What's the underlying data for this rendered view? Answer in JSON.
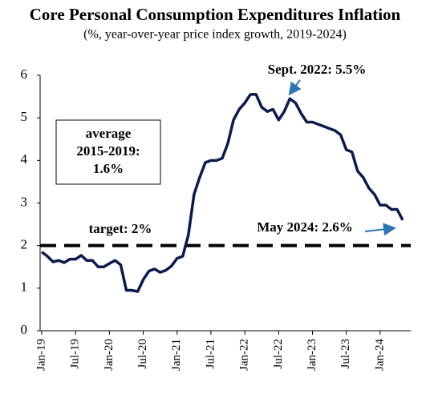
{
  "chart_data": {
    "type": "line",
    "title": "Core Personal Consumption Expenditures Inflation",
    "subtitle": "(%, year-over-year price index growth, 2019-2024)",
    "categories": [
      "Jan-19",
      null,
      null,
      null,
      null,
      null,
      "Jul-19",
      null,
      null,
      null,
      null,
      null,
      "Jan-20",
      null,
      null,
      null,
      null,
      null,
      "Jul-20",
      null,
      null,
      null,
      null,
      null,
      "Jan-21",
      null,
      null,
      null,
      null,
      null,
      "Jul-21",
      null,
      null,
      null,
      null,
      null,
      "Jan-22",
      null,
      null,
      null,
      null,
      null,
      "Jul-22",
      null,
      null,
      null,
      null,
      null,
      "Jan-23",
      null,
      null,
      null,
      null,
      null,
      "Jul-23",
      null,
      null,
      null,
      null,
      null,
      "Jan-24",
      null,
      null,
      null,
      null
    ],
    "series": [
      {
        "name": "Core PCE inflation",
        "color": "#0d1b4b",
        "values": [
          1.85,
          1.75,
          1.62,
          1.65,
          1.6,
          1.68,
          1.68,
          1.77,
          1.65,
          1.65,
          1.5,
          1.5,
          1.58,
          1.65,
          1.55,
          0.95,
          0.95,
          0.92,
          1.2,
          1.4,
          1.45,
          1.37,
          1.42,
          1.52,
          1.7,
          1.75,
          2.25,
          3.2,
          3.6,
          3.95,
          4.0,
          4.0,
          4.05,
          4.4,
          4.95,
          5.2,
          5.35,
          5.55,
          5.55,
          5.25,
          5.15,
          5.2,
          4.95,
          5.15,
          5.45,
          5.35,
          5.1,
          4.9,
          4.9,
          4.85,
          4.8,
          4.75,
          4.7,
          4.6,
          4.25,
          4.2,
          3.75,
          3.6,
          3.35,
          3.2,
          2.95,
          2.95,
          2.85,
          2.85,
          2.6
        ]
      }
    ],
    "ylim": [
      0,
      6
    ],
    "yticks": [
      0,
      1,
      2,
      3,
      4,
      5,
      6
    ],
    "reference_line": {
      "label": "target: 2%",
      "value": 2
    },
    "average_box": [
      "average",
      "2015-2019:",
      "1.6%"
    ],
    "annotations": [
      "Sept. 2022: 5.5%",
      "May 2024: 2.6%"
    ],
    "annotation_color": "#2e75b6"
  }
}
